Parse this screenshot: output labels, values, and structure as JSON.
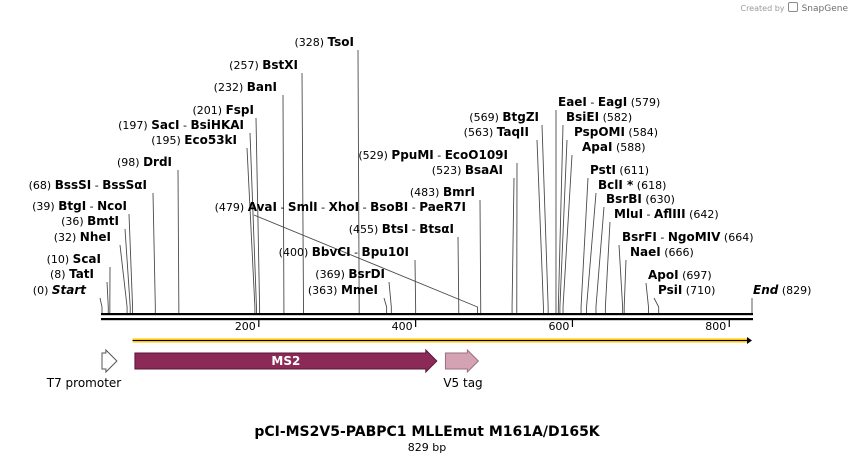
{
  "branding": {
    "created_by": "Created by",
    "app_name": "SnapGene"
  },
  "plasmid": {
    "name": "pCI-MS2V5-PABPC1 MLLEmut M161A/D165K",
    "length_label": "829 bp",
    "length": 829
  },
  "ruler": {
    "ticks": [
      200,
      400,
      600,
      800
    ]
  },
  "sites": [
    {
      "parts": [
        {
          "num": "(0)"
        },
        {
          "name": "Start",
          "italic": true
        }
      ],
      "pos": 0
    },
    {
      "parts": [
        {
          "num": "(8)"
        },
        {
          "name": "TatI"
        }
      ],
      "pos": 8
    },
    {
      "parts": [
        {
          "num": "(10)"
        },
        {
          "name": "ScaI"
        }
      ],
      "pos": 10
    },
    {
      "parts": [
        {
          "num": "(32)"
        },
        {
          "name": "NheI"
        }
      ],
      "pos": 32
    },
    {
      "parts": [
        {
          "num": "(36)"
        },
        {
          "name": "BmtI"
        }
      ],
      "pos": 36
    },
    {
      "parts": [
        {
          "num": "(39)"
        },
        {
          "name": "BtgI"
        },
        {
          "sep": " - "
        },
        {
          "name": "NcoI"
        }
      ],
      "pos": 39
    },
    {
      "parts": [
        {
          "num": "(68)"
        },
        {
          "name": "BssSI"
        },
        {
          "sep": " - "
        },
        {
          "name": "BssSαI"
        }
      ],
      "pos": 68
    },
    {
      "parts": [
        {
          "num": "(98)"
        },
        {
          "name": "DrdI"
        }
      ],
      "pos": 98
    },
    {
      "parts": [
        {
          "num": "(195)"
        },
        {
          "name": "Eco53kI"
        }
      ],
      "pos": 195
    },
    {
      "parts": [
        {
          "num": "(197)"
        },
        {
          "name": "SacI"
        },
        {
          "sep": " - "
        },
        {
          "name": "BsiHKAI"
        }
      ],
      "pos": 197
    },
    {
      "parts": [
        {
          "num": "(201)"
        },
        {
          "name": "FspI"
        }
      ],
      "pos": 201
    },
    {
      "parts": [
        {
          "num": "(232)"
        },
        {
          "name": "BanI"
        }
      ],
      "pos": 232
    },
    {
      "parts": [
        {
          "num": "(257)"
        },
        {
          "name": "BstXI"
        }
      ],
      "pos": 257
    },
    {
      "parts": [
        {
          "num": "(328)"
        },
        {
          "name": "TsoI"
        }
      ],
      "pos": 328
    },
    {
      "parts": [
        {
          "num": "(479)"
        },
        {
          "name": "AvaI"
        },
        {
          "sep": " - "
        },
        {
          "name": "SmlI"
        },
        {
          "sep": " - "
        },
        {
          "name": "XhoI"
        },
        {
          "sep": " - "
        },
        {
          "name": "BsoBI"
        },
        {
          "sep": " - "
        },
        {
          "name": "PaeR7I"
        }
      ],
      "pos": 479
    },
    {
      "parts": [
        {
          "num": "(400)"
        },
        {
          "name": "BbvCI"
        },
        {
          "sep": " - "
        },
        {
          "name": "Bpu10I"
        }
      ],
      "pos": 400
    },
    {
      "parts": [
        {
          "num": "(369)"
        },
        {
          "name": "BsrDI"
        }
      ],
      "pos": 369
    },
    {
      "parts": [
        {
          "num": "(363)"
        },
        {
          "name": "MmeI"
        }
      ],
      "pos": 363
    },
    {
      "parts": [
        {
          "num": "(529)"
        },
        {
          "name": "PpuMI"
        },
        {
          "sep": " - "
        },
        {
          "name": "EcoO109I"
        }
      ],
      "pos": 529
    },
    {
      "parts": [
        {
          "num": "(523)"
        },
        {
          "name": "BsaAI"
        }
      ],
      "pos": 523
    },
    {
      "parts": [
        {
          "num": "(483)"
        },
        {
          "name": "BmrI"
        }
      ],
      "pos": 483
    },
    {
      "parts": [
        {
          "num": "(455)"
        },
        {
          "name": "BtsI"
        },
        {
          "sep": " - "
        },
        {
          "name": "BtsαI"
        }
      ],
      "pos": 455
    },
    {
      "parts": [
        {
          "num": "(569)"
        },
        {
          "name": "BtgZI"
        }
      ],
      "pos": 569
    },
    {
      "parts": [
        {
          "num": "(563)"
        },
        {
          "name": "TaqII"
        }
      ],
      "pos": 563
    },
    {
      "parts": [
        {
          "name": "EaeI"
        },
        {
          "sep": " - "
        },
        {
          "name": "EagI"
        },
        {
          "num": "  (579)"
        }
      ],
      "pos": 579
    },
    {
      "parts": [
        {
          "name": "BsiEI"
        },
        {
          "num": "  (582)"
        }
      ],
      "pos": 582
    },
    {
      "parts": [
        {
          "name": "PspOMI"
        },
        {
          "num": "  (584)"
        }
      ],
      "pos": 584
    },
    {
      "parts": [
        {
          "name": "ApaI"
        },
        {
          "num": "  (588)"
        }
      ],
      "pos": 588
    },
    {
      "parts": [
        {
          "name": "PstI"
        },
        {
          "num": "  (611)"
        }
      ],
      "pos": 611
    },
    {
      "parts": [
        {
          "name": "BclI *"
        },
        {
          "num": "  (618)"
        }
      ],
      "pos": 618
    },
    {
      "parts": [
        {
          "name": "BsrBI"
        },
        {
          "num": "  (630)"
        }
      ],
      "pos": 630
    },
    {
      "parts": [
        {
          "name": "MluI"
        },
        {
          "sep": " - "
        },
        {
          "name": "AflIII"
        },
        {
          "num": "  (642)"
        }
      ],
      "pos": 642
    },
    {
      "parts": [
        {
          "name": "BsrFI"
        },
        {
          "sep": " - "
        },
        {
          "name": "NgoMIV"
        },
        {
          "num": "  (664)"
        }
      ],
      "pos": 664
    },
    {
      "parts": [
        {
          "name": "NaeI"
        },
        {
          "num": "  (666)"
        }
      ],
      "pos": 666
    },
    {
      "parts": [
        {
          "name": "ApoI"
        },
        {
          "num": "  (697)"
        }
      ],
      "pos": 697
    },
    {
      "parts": [
        {
          "name": "PsiI"
        },
        {
          "num": "  (710)"
        }
      ],
      "pos": 710
    },
    {
      "parts": [
        {
          "name": "End",
          "italic": true
        },
        {
          "num": "  (829)"
        }
      ],
      "pos": 829
    }
  ],
  "features": [
    {
      "label": "T7 promoter",
      "color": "#ffffff",
      "start": 0,
      "end": 19
    },
    {
      "label": "MS2",
      "color": "#8b2a57",
      "start": 42,
      "end": 427
    },
    {
      "label": "V5 tag",
      "color": "#d4a3b3",
      "start": 438,
      "end": 480
    }
  ],
  "orf": {
    "color": "#ffc600",
    "start": 39,
    "end": 829
  }
}
